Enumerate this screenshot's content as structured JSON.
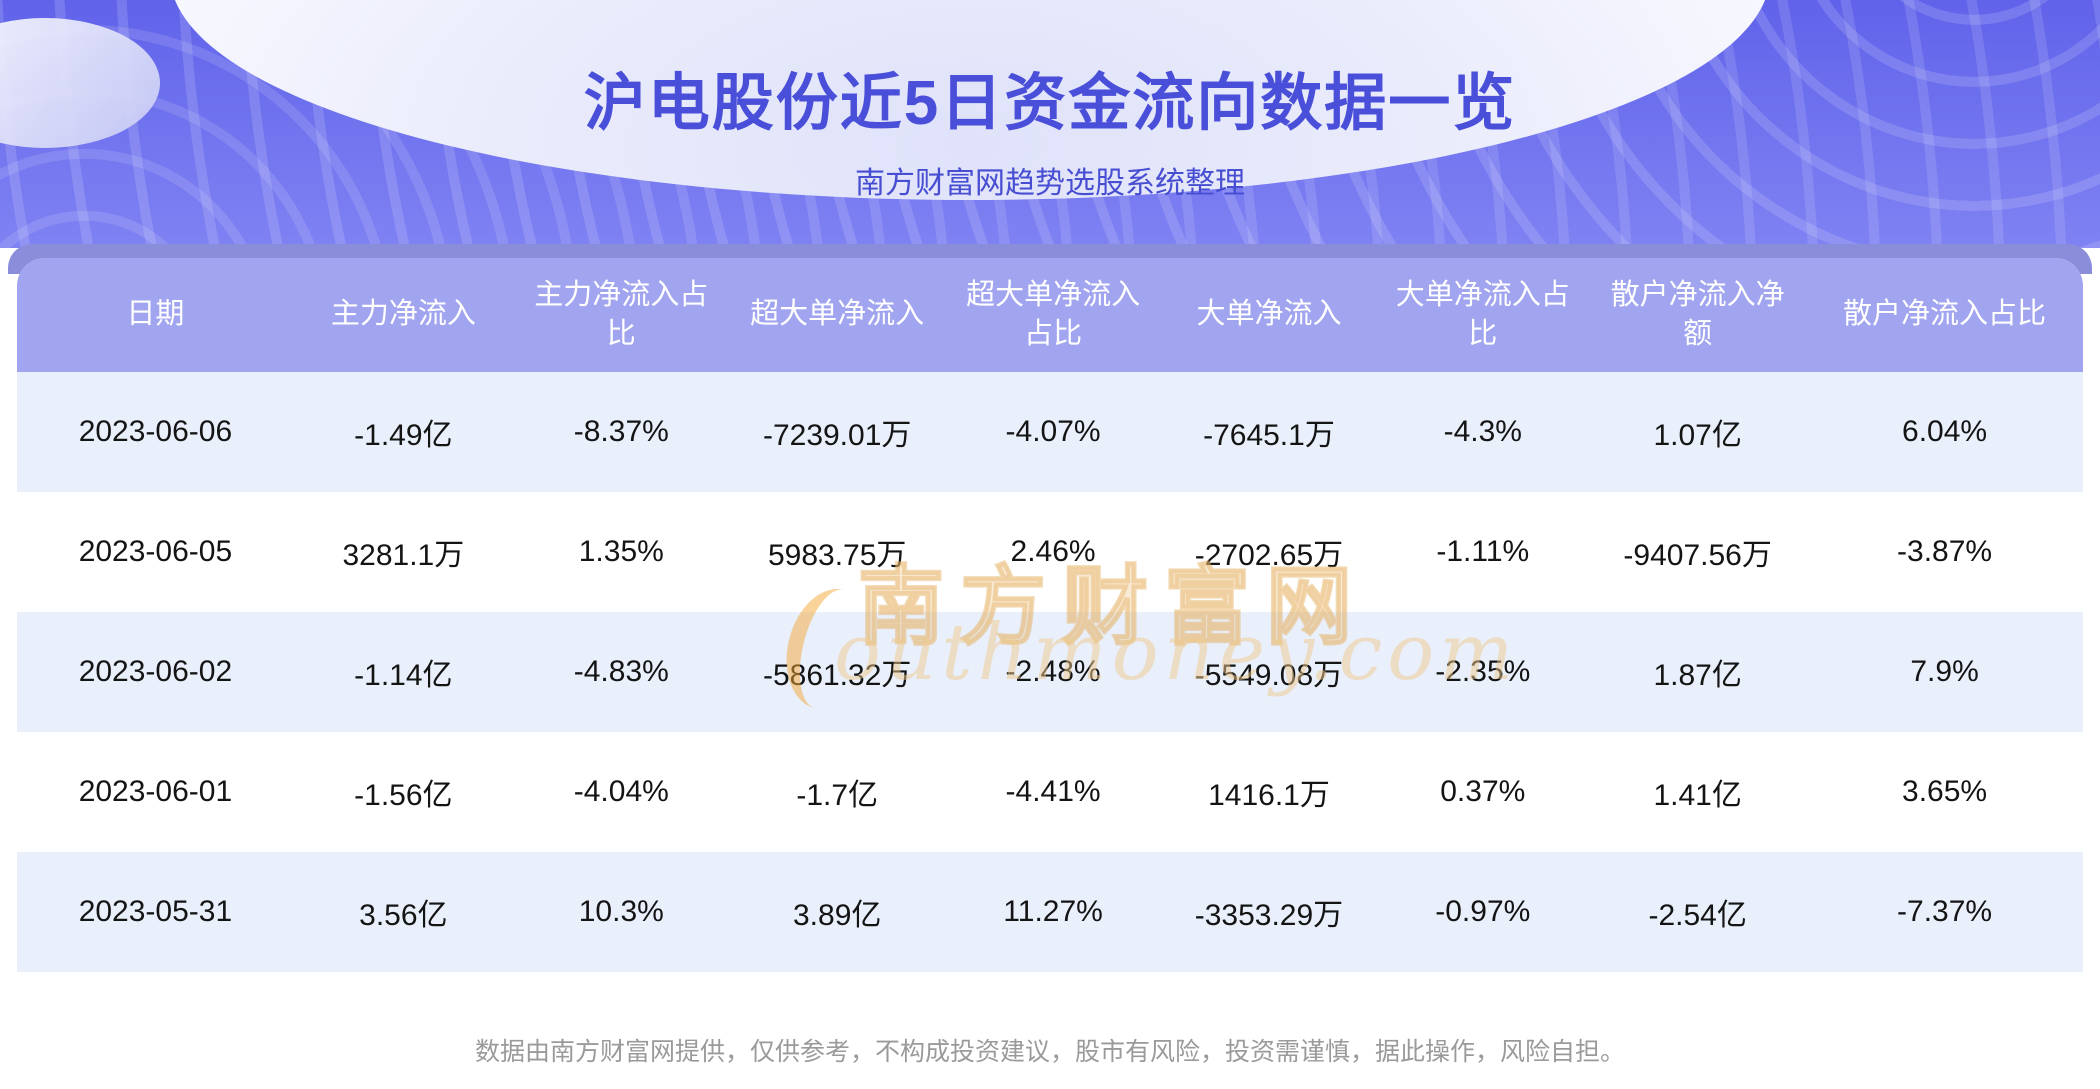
{
  "header": {
    "title": "沪电股份近5日资金流向数据一览",
    "subtitle": "南方财富网趋势选股系统整理"
  },
  "watermark": {
    "cn": "南方财富网",
    "en": "outhmoney.com"
  },
  "footer": {
    "disclaimer": "数据由南方财富网提供，仅供参考，不构成投资建议，股市有风险，投资需谨慎，据此操作，风险自担。"
  },
  "colors": {
    "hero_purple": "#6b6eec",
    "band_purple": "#8a8dd9",
    "header_row_purple": "#a1a4ee",
    "row_alt_blue": "#e9effb",
    "title_blue": "#4a4fd9",
    "watermark_orange": "#e8b272",
    "footer_gray": "#9a9a9a"
  },
  "chart_data": {
    "type": "table",
    "title": "沪电股份近5日资金流向数据一览",
    "subtitle": "南方财富网趋势选股系统整理",
    "columns": [
      "日期",
      "主力净流入",
      "主力净流入占比",
      "超大单净流入",
      "超大单净流入占比",
      "大单净流入",
      "大单净流入占比",
      "散户净流入净额",
      "散户净流入占比"
    ],
    "rows": [
      [
        "2023-06-06",
        "-1.49亿",
        "-8.37%",
        "-7239.01万",
        "-4.07%",
        "-7645.1万",
        "-4.3%",
        "1.07亿",
        "6.04%"
      ],
      [
        "2023-06-05",
        "3281.1万",
        "1.35%",
        "5983.75万",
        "2.46%",
        "-2702.65万",
        "-1.11%",
        "-9407.56万",
        "-3.87%"
      ],
      [
        "2023-06-02",
        "-1.14亿",
        "-4.83%",
        "-5861.32万",
        "-2.48%",
        "-5549.08万",
        "-2.35%",
        "1.87亿",
        "7.9%"
      ],
      [
        "2023-06-01",
        "-1.56亿",
        "-4.04%",
        "-1.7亿",
        "-4.41%",
        "1416.1万",
        "0.37%",
        "1.41亿",
        "3.65%"
      ],
      [
        "2023-05-31",
        "3.56亿",
        "10.3%",
        "3.89亿",
        "11.27%",
        "-3353.29万",
        "-0.97%",
        "-2.54亿",
        "-7.37%"
      ]
    ]
  }
}
